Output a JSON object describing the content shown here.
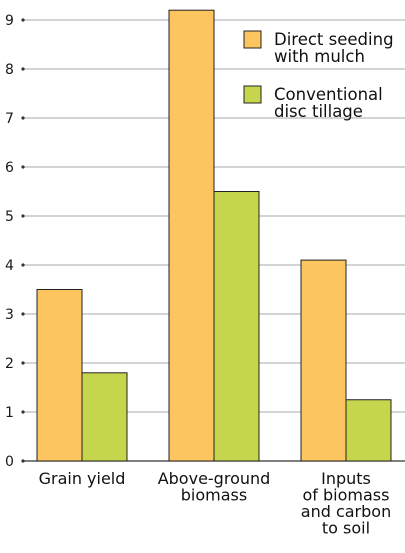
{
  "chart_data": {
    "type": "bar",
    "title": "",
    "xlabel": "",
    "ylabel": "",
    "ylim": [
      0,
      9.3
    ],
    "yticks": [
      0,
      1,
      2,
      3,
      4,
      5,
      6,
      7,
      8,
      9
    ],
    "grid": true,
    "legend_position": "top-right",
    "categories": [
      [
        "Grain yield"
      ],
      [
        "Above-ground",
        "biomass"
      ],
      [
        "Inputs",
        "of biomass",
        "and carbon",
        "to soil"
      ]
    ],
    "series": [
      {
        "name": [
          "Direct seeding",
          "with mulch"
        ],
        "color": "#fcc55f",
        "values": [
          3.5,
          9.2,
          4.1
        ]
      },
      {
        "name": [
          "Conventional",
          "disc tillage"
        ],
        "color": "#c5d64c",
        "values": [
          1.8,
          5.5,
          1.25
        ]
      }
    ],
    "colors": {
      "grid": "#8c8c8c",
      "axis": "#333333",
      "bar_stroke": "#222222"
    }
  }
}
